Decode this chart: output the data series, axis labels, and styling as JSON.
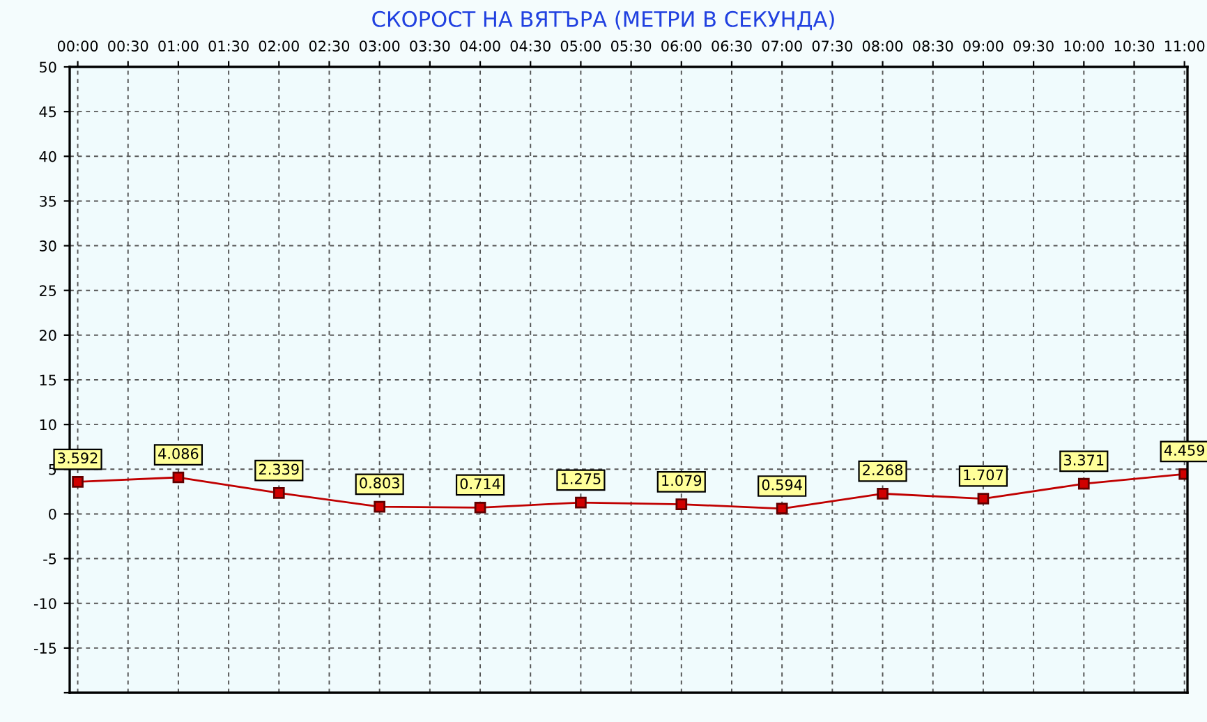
{
  "chart_data": {
    "type": "line",
    "title": "СКОРОСТ НА ВЯТЪРА (МЕТРИ В СЕКУНДА)",
    "x": [
      0,
      1,
      2,
      3,
      4,
      5,
      6,
      7,
      8,
      9,
      10,
      11
    ],
    "series": [
      {
        "color": "#c00000",
        "values": [
          3.592,
          4.086,
          2.339,
          0.803,
          0.714,
          1.275,
          1.079,
          0.594,
          2.268,
          1.707,
          3.371,
          4.459
        ]
      }
    ],
    "xlim": [
      -0.08,
      11.03
    ],
    "xticks": [
      {
        "value": 0,
        "label": "00:00"
      },
      {
        "value": 0.5,
        "label": "00:30"
      },
      {
        "value": 1,
        "label": "01:00"
      },
      {
        "value": 1.5,
        "label": "01:30"
      },
      {
        "value": 2,
        "label": "02:00"
      },
      {
        "value": 2.5,
        "label": "02:30"
      },
      {
        "value": 3,
        "label": "03:00"
      },
      {
        "value": 3.5,
        "label": "03:30"
      },
      {
        "value": 4,
        "label": "04:00"
      },
      {
        "value": 4.5,
        "label": "04:30"
      },
      {
        "value": 5,
        "label": "05:00"
      },
      {
        "value": 5.5,
        "label": "05:30"
      },
      {
        "value": 6,
        "label": "06:00"
      },
      {
        "value": 6.5,
        "label": "06:30"
      },
      {
        "value": 7,
        "label": "07:00"
      },
      {
        "value": 7.5,
        "label": "07:30"
      },
      {
        "value": 8,
        "label": "08:00"
      },
      {
        "value": 8.5,
        "label": "08:30"
      },
      {
        "value": 9,
        "label": "09:00"
      },
      {
        "value": 9.5,
        "label": "09:30"
      },
      {
        "value": 10,
        "label": "10:00"
      },
      {
        "value": 10.5,
        "label": "10:30"
      },
      {
        "value": 11,
        "label": "11:00"
      }
    ],
    "ylim": [
      -20,
      50
    ],
    "yticks": [
      {
        "value": -20,
        "label": null
      },
      -15,
      -10,
      -5,
      0,
      5,
      10,
      15,
      20,
      25,
      30,
      35,
      40,
      45,
      50
    ],
    "grid": true,
    "marker": "square",
    "line_style": "solid",
    "data_labels": true,
    "legend": false
  }
}
